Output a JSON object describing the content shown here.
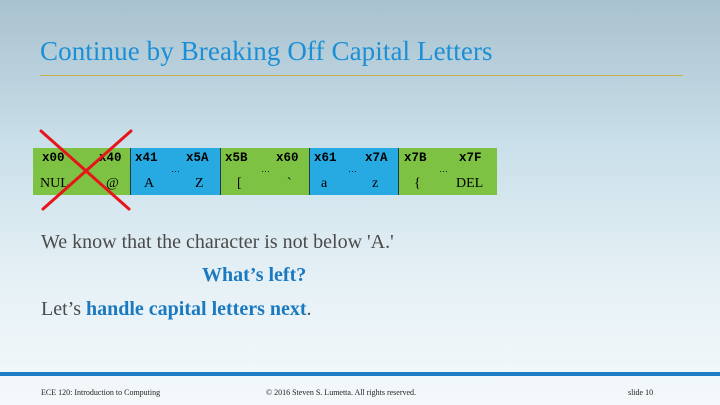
{
  "slide": {
    "title": "Continue by Breaking Off Capital Letters",
    "table": [
      {
        "id": "nul-at",
        "color": "#7dc243",
        "left_code": "x00",
        "right_code": "x40",
        "left_char": "NUL",
        "right_char": "@",
        "dots": "…",
        "crossed_out": true
      },
      {
        "id": "capitals",
        "color": "#27a9e1",
        "left_code": "x41",
        "right_code": "x5A",
        "left_char": "A",
        "right_char": "Z",
        "dots": "…"
      },
      {
        "id": "brackets",
        "color": "#7dc243",
        "left_code": "x5B",
        "right_code": "x60",
        "left_char": "[",
        "right_char": "`",
        "dots": "…"
      },
      {
        "id": "lowercase",
        "color": "#27a9e1",
        "left_code": "x61",
        "right_code": "x7A",
        "left_char": "a",
        "right_char": "z",
        "dots": "…"
      },
      {
        "id": "brace-del",
        "color": "#7dc243",
        "left_code": "x7B",
        "right_code": "x7F",
        "left_char": "{",
        "right_char": "DEL",
        "dots": "…"
      }
    ],
    "body": {
      "line1": "We know that the character is not below 'A.'",
      "line2": "What’s left?",
      "line3_prefix": "Let’s ",
      "line3_highlight": "handle capital letters next",
      "line3_suffix": "."
    },
    "cross_color": "#e8141b"
  },
  "footer": {
    "course": "ECE 120: Introduction to Computing",
    "copyright": "© 2016 Steven S. Lumetta.  All rights reserved.",
    "slide_number": "slide 10"
  }
}
